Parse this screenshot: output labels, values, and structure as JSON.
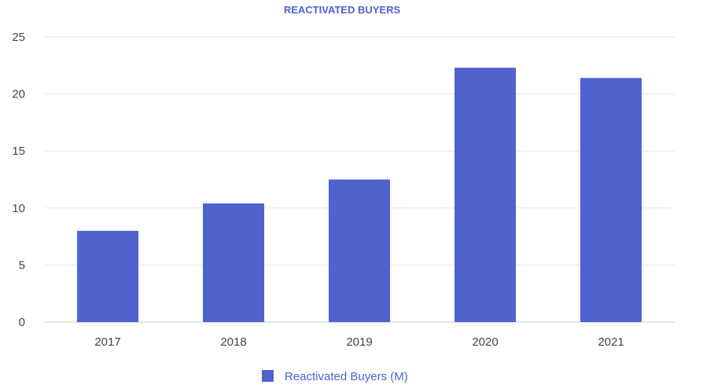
{
  "colors": {
    "bar": "#4f62cd",
    "title": "#4f62cd",
    "legend_text": "#4f62cd",
    "tick_text": "#444444",
    "grid": "#e6e6e6"
  },
  "chart_data": {
    "type": "bar",
    "title": "REACTIVATED BUYERS",
    "xlabel": "",
    "ylabel": "",
    "categories": [
      "2017",
      "2018",
      "2019",
      "2020",
      "2021"
    ],
    "series": [
      {
        "name": "Reactivated Buyers (M)",
        "values": [
          8.0,
          10.4,
          12.5,
          22.3,
          21.4
        ]
      }
    ],
    "ylim": [
      0,
      25
    ],
    "yticks": [
      "0",
      "5",
      "10",
      "15",
      "20",
      "25"
    ],
    "grid": true,
    "legend_position": "bottom"
  }
}
